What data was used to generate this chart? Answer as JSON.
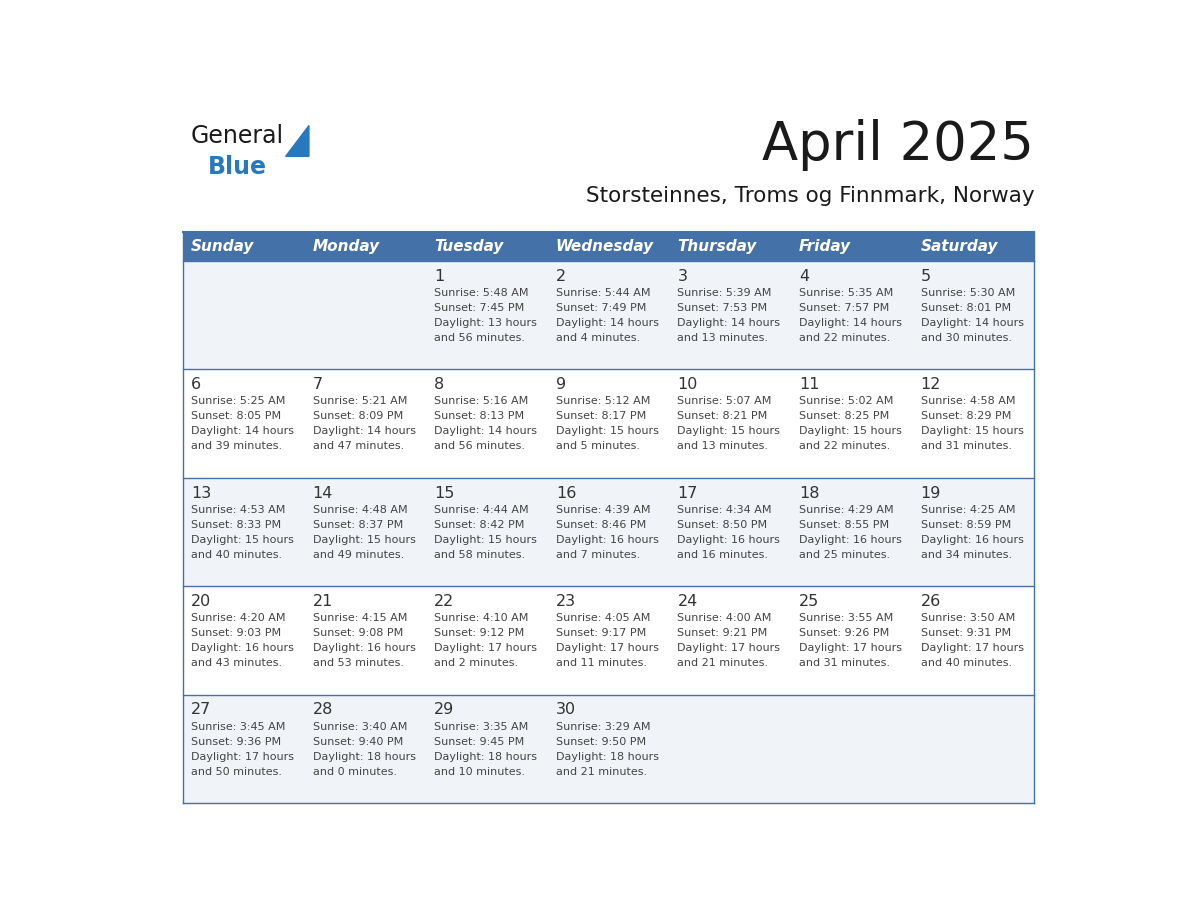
{
  "title": "April 2025",
  "subtitle": "Storsteinnes, Troms og Finnmark, Norway",
  "header_bg_color": "#4472a8",
  "header_text_color": "#ffffff",
  "days_of_week": [
    "Sunday",
    "Monday",
    "Tuesday",
    "Wednesday",
    "Thursday",
    "Friday",
    "Saturday"
  ],
  "row_bg_odd": "#f0f4f8",
  "row_bg_even": "#ffffff",
  "cell_border_color": "#4472a8",
  "day_number_color": "#333333",
  "info_text_color": "#444444",
  "logo_color_general": "#1a1a1a",
  "logo_color_blue": "#2878c0",
  "logo_triangle_color": "#2878c0",
  "calendar_data": [
    [
      {
        "day": null,
        "info": ""
      },
      {
        "day": null,
        "info": ""
      },
      {
        "day": 1,
        "info": "Sunrise: 5:48 AM\nSunset: 7:45 PM\nDaylight: 13 hours\nand 56 minutes."
      },
      {
        "day": 2,
        "info": "Sunrise: 5:44 AM\nSunset: 7:49 PM\nDaylight: 14 hours\nand 4 minutes."
      },
      {
        "day": 3,
        "info": "Sunrise: 5:39 AM\nSunset: 7:53 PM\nDaylight: 14 hours\nand 13 minutes."
      },
      {
        "day": 4,
        "info": "Sunrise: 5:35 AM\nSunset: 7:57 PM\nDaylight: 14 hours\nand 22 minutes."
      },
      {
        "day": 5,
        "info": "Sunrise: 5:30 AM\nSunset: 8:01 PM\nDaylight: 14 hours\nand 30 minutes."
      }
    ],
    [
      {
        "day": 6,
        "info": "Sunrise: 5:25 AM\nSunset: 8:05 PM\nDaylight: 14 hours\nand 39 minutes."
      },
      {
        "day": 7,
        "info": "Sunrise: 5:21 AM\nSunset: 8:09 PM\nDaylight: 14 hours\nand 47 minutes."
      },
      {
        "day": 8,
        "info": "Sunrise: 5:16 AM\nSunset: 8:13 PM\nDaylight: 14 hours\nand 56 minutes."
      },
      {
        "day": 9,
        "info": "Sunrise: 5:12 AM\nSunset: 8:17 PM\nDaylight: 15 hours\nand 5 minutes."
      },
      {
        "day": 10,
        "info": "Sunrise: 5:07 AM\nSunset: 8:21 PM\nDaylight: 15 hours\nand 13 minutes."
      },
      {
        "day": 11,
        "info": "Sunrise: 5:02 AM\nSunset: 8:25 PM\nDaylight: 15 hours\nand 22 minutes."
      },
      {
        "day": 12,
        "info": "Sunrise: 4:58 AM\nSunset: 8:29 PM\nDaylight: 15 hours\nand 31 minutes."
      }
    ],
    [
      {
        "day": 13,
        "info": "Sunrise: 4:53 AM\nSunset: 8:33 PM\nDaylight: 15 hours\nand 40 minutes."
      },
      {
        "day": 14,
        "info": "Sunrise: 4:48 AM\nSunset: 8:37 PM\nDaylight: 15 hours\nand 49 minutes."
      },
      {
        "day": 15,
        "info": "Sunrise: 4:44 AM\nSunset: 8:42 PM\nDaylight: 15 hours\nand 58 minutes."
      },
      {
        "day": 16,
        "info": "Sunrise: 4:39 AM\nSunset: 8:46 PM\nDaylight: 16 hours\nand 7 minutes."
      },
      {
        "day": 17,
        "info": "Sunrise: 4:34 AM\nSunset: 8:50 PM\nDaylight: 16 hours\nand 16 minutes."
      },
      {
        "day": 18,
        "info": "Sunrise: 4:29 AM\nSunset: 8:55 PM\nDaylight: 16 hours\nand 25 minutes."
      },
      {
        "day": 19,
        "info": "Sunrise: 4:25 AM\nSunset: 8:59 PM\nDaylight: 16 hours\nand 34 minutes."
      }
    ],
    [
      {
        "day": 20,
        "info": "Sunrise: 4:20 AM\nSunset: 9:03 PM\nDaylight: 16 hours\nand 43 minutes."
      },
      {
        "day": 21,
        "info": "Sunrise: 4:15 AM\nSunset: 9:08 PM\nDaylight: 16 hours\nand 53 minutes."
      },
      {
        "day": 22,
        "info": "Sunrise: 4:10 AM\nSunset: 9:12 PM\nDaylight: 17 hours\nand 2 minutes."
      },
      {
        "day": 23,
        "info": "Sunrise: 4:05 AM\nSunset: 9:17 PM\nDaylight: 17 hours\nand 11 minutes."
      },
      {
        "day": 24,
        "info": "Sunrise: 4:00 AM\nSunset: 9:21 PM\nDaylight: 17 hours\nand 21 minutes."
      },
      {
        "day": 25,
        "info": "Sunrise: 3:55 AM\nSunset: 9:26 PM\nDaylight: 17 hours\nand 31 minutes."
      },
      {
        "day": 26,
        "info": "Sunrise: 3:50 AM\nSunset: 9:31 PM\nDaylight: 17 hours\nand 40 minutes."
      }
    ],
    [
      {
        "day": 27,
        "info": "Sunrise: 3:45 AM\nSunset: 9:36 PM\nDaylight: 17 hours\nand 50 minutes."
      },
      {
        "day": 28,
        "info": "Sunrise: 3:40 AM\nSunset: 9:40 PM\nDaylight: 18 hours\nand 0 minutes."
      },
      {
        "day": 29,
        "info": "Sunrise: 3:35 AM\nSunset: 9:45 PM\nDaylight: 18 hours\nand 10 minutes."
      },
      {
        "day": 30,
        "info": "Sunrise: 3:29 AM\nSunset: 9:50 PM\nDaylight: 18 hours\nand 21 minutes."
      },
      {
        "day": null,
        "info": ""
      },
      {
        "day": null,
        "info": ""
      },
      {
        "day": null,
        "info": ""
      }
    ]
  ]
}
